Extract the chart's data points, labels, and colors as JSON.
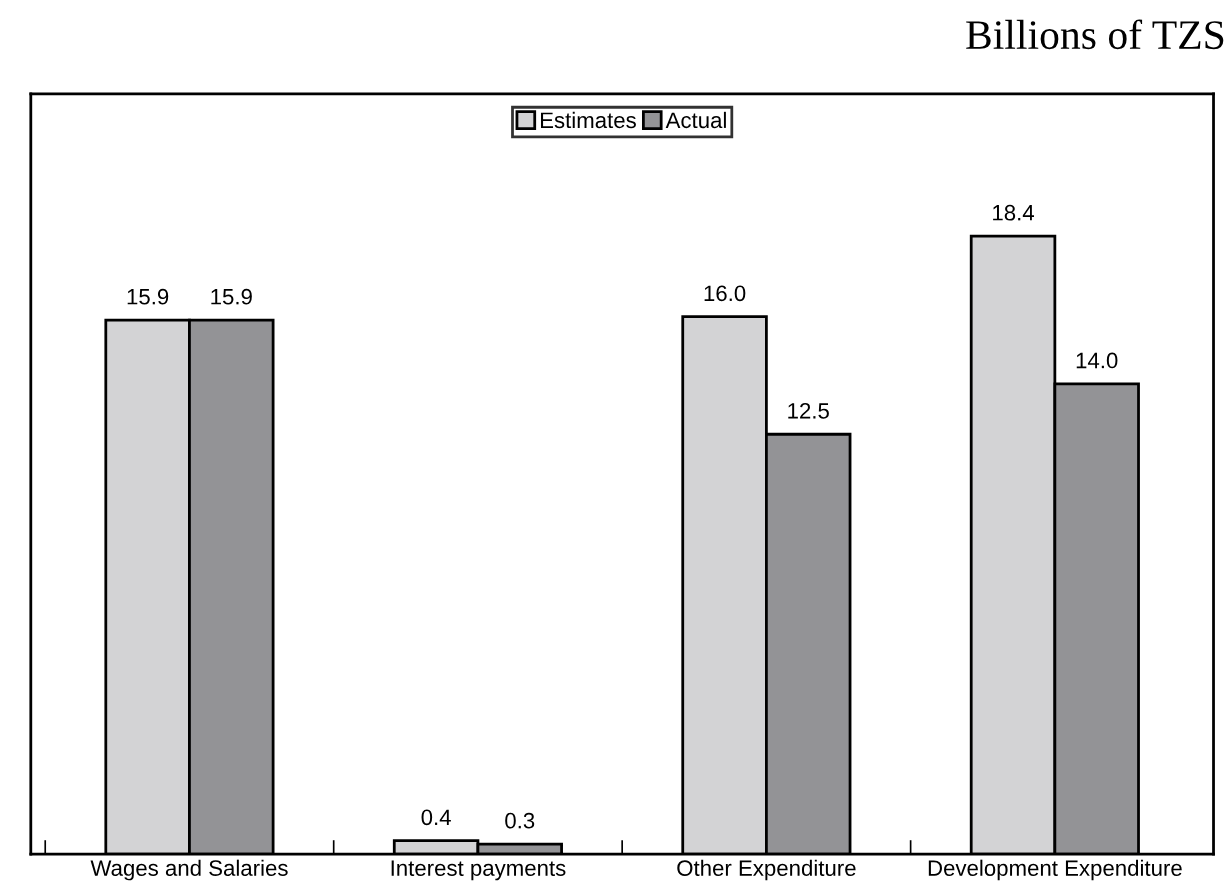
{
  "chart_data": {
    "type": "bar",
    "title": "Billions of TZS",
    "categories": [
      "Wages and Salaries",
      "Interest payments",
      "Other Expenditure",
      "Development Expenditure"
    ],
    "series": [
      {
        "name": "Estimates",
        "color": "#d3d3d5",
        "values": [
          15.9,
          0.4,
          16.0,
          18.4
        ],
        "value_labels": [
          "15.9",
          "0.4",
          "16.0",
          "18.4"
        ]
      },
      {
        "name": "Actual",
        "color": "#939396",
        "values": [
          15.9,
          0.3,
          12.5,
          14.0
        ],
        "value_labels": [
          "15.9",
          "0.3",
          "12.5",
          "14.0"
        ]
      }
    ],
    "legend": "top"
  }
}
